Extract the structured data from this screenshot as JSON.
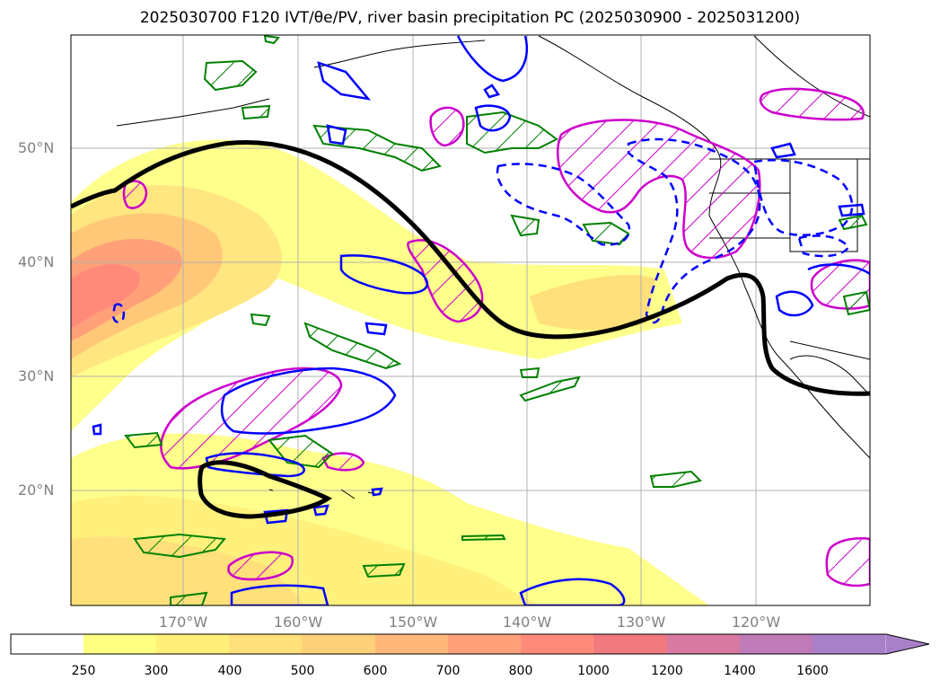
{
  "title": "2025030700 F120 IVT/θe/PV, river basin precipitation PC (2025030900 - 2025031200)",
  "map": {
    "lat_labels": [
      "50°N",
      "40°N",
      "30°N",
      "20°N"
    ],
    "lon_labels": [
      "170°W",
      "160°W",
      "150°W",
      "140°W",
      "130°W",
      "120°W"
    ],
    "extent": {
      "lon_min": -180,
      "lon_max": -110,
      "lat_min": 10,
      "lat_max": 60
    },
    "gridlines": true,
    "contour_colors": {
      "theta_e": "#000000",
      "pv": "#0000ff",
      "precip_pc": "#cc00cc",
      "other": "#008000"
    }
  },
  "colorbar": {
    "ticks": [
      "250",
      "300",
      "400",
      "500",
      "600",
      "700",
      "800",
      "1000",
      "1200",
      "1400",
      "1600"
    ],
    "colors": [
      "#ffff80",
      "#fff07a",
      "#ffe07a",
      "#ffd07a",
      "#ffb87a",
      "#ffa07a",
      "#ff8a7a",
      "#f07a80",
      "#d87aa0",
      "#c07ab8",
      "#a880c8"
    ],
    "extend": "max"
  }
}
